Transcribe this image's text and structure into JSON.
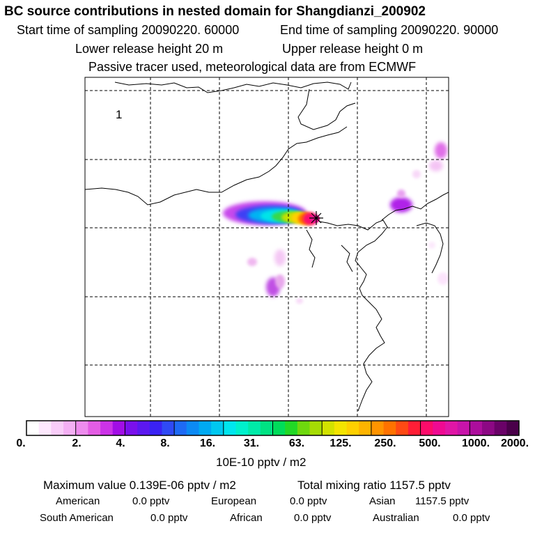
{
  "header": {
    "title": "BC  source contributions in nested domain for Shangdianzi_200902",
    "start_time": "Start time of sampling 20090220. 60000",
    "end_time": "End time of sampling 20090220. 90000",
    "lower_height": "Lower release height   20 m",
    "upper_height": "Upper release height    0 m",
    "tracer_note": "Passive tracer used, meteorological data are from ECMWF"
  },
  "map": {
    "panel_number": "1",
    "receptor_marker": "star-marker"
  },
  "colorbar": {
    "labels": [
      "0.",
      "2.",
      "4.",
      "8.",
      "16.",
      "31.",
      "63.",
      "125.",
      "250.",
      "500.",
      "1000.",
      "2000."
    ],
    "unit": "10E-10 pptv / m2",
    "colors": [
      "#ffffff",
      "#fde8fd",
      "#f9cdf9",
      "#f4b0f4",
      "#ee8cee",
      "#e45de4",
      "#cc33e8",
      "#a20ee6",
      "#7a10ec",
      "#5c18f0",
      "#3a22f4",
      "#2f4af5",
      "#1e6af5",
      "#0c8af4",
      "#00aaf2",
      "#00c8f0",
      "#00e6ee",
      "#00f0cc",
      "#00eaa8",
      "#00e283",
      "#00dc5a",
      "#22d826",
      "#6ed80e",
      "#a6dc04",
      "#d2e200",
      "#f4e400",
      "#ffd000",
      "#ffb400",
      "#ff9400",
      "#ff7200",
      "#ff4a14",
      "#ff1e36",
      "#fc0c6a",
      "#ef0a92",
      "#e016a6",
      "#c814aa",
      "#ac0e9c",
      "#8c0884",
      "#6a0268",
      "#4a004a"
    ]
  },
  "summary": {
    "max_value": "Maximum value  0.139E-06 pptv / m2",
    "total_mixing": "Total mixing ratio      1157.5 pptv",
    "regions": [
      {
        "name": "American",
        "value": "0.0 pptv"
      },
      {
        "name": "European",
        "value": "0.0 pptv"
      },
      {
        "name": "Asian",
        "value": "1157.5 pptv"
      },
      {
        "name": "South American",
        "value": "0.0 pptv"
      },
      {
        "name": "African",
        "value": "0.0 pptv"
      },
      {
        "name": "Australian",
        "value": "0.0 pptv"
      }
    ]
  }
}
